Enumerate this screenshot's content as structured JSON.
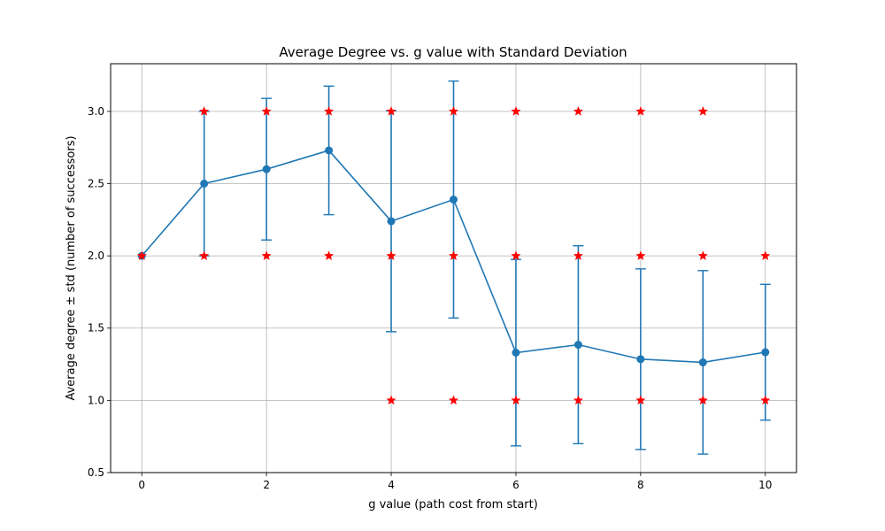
{
  "chart_data": {
    "type": "line",
    "title": "Average Degree vs. g value with Standard Deviation",
    "xlabel": "g value (path cost from start)",
    "ylabel": "Average degree ± std (number of successors)",
    "xlim": [
      -0.5,
      10.5
    ],
    "ylim": [
      0.5,
      3.33
    ],
    "xticks": [
      0,
      2,
      4,
      6,
      8,
      10
    ],
    "yticks": [
      0.5,
      1.0,
      1.5,
      2.0,
      2.5,
      3.0
    ],
    "grid": true,
    "series": [
      {
        "kind": "line-errorbar",
        "color": "#1f77b4",
        "x": [
          0,
          1,
          2,
          3,
          4,
          5,
          6,
          7,
          8,
          9,
          10
        ],
        "y": [
          2.0,
          2.5,
          2.6,
          2.73,
          2.24,
          2.39,
          1.33,
          1.385,
          1.285,
          1.263,
          1.333
        ],
        "std": [
          0.0,
          0.5,
          0.49,
          0.445,
          0.765,
          0.82,
          0.645,
          0.685,
          0.625,
          0.635,
          0.47
        ]
      },
      {
        "kind": "scatter-star",
        "color": "#ff0000",
        "points": [
          [
            0,
            2.0
          ],
          [
            1,
            3.0
          ],
          [
            1,
            2.0
          ],
          [
            2,
            3.0
          ],
          [
            2,
            2.0
          ],
          [
            3,
            3.0
          ],
          [
            3,
            2.0
          ],
          [
            4,
            3.0
          ],
          [
            4,
            2.0
          ],
          [
            4,
            1.0
          ],
          [
            5,
            3.0
          ],
          [
            5,
            2.0
          ],
          [
            5,
            1.0
          ],
          [
            6,
            3.0
          ],
          [
            6,
            2.0
          ],
          [
            6,
            1.0
          ],
          [
            7,
            3.0
          ],
          [
            7,
            2.0
          ],
          [
            7,
            1.0
          ],
          [
            8,
            3.0
          ],
          [
            8,
            2.0
          ],
          [
            8,
            1.0
          ],
          [
            9,
            3.0
          ],
          [
            9,
            2.0
          ],
          [
            9,
            1.0
          ],
          [
            10,
            2.0
          ],
          [
            10,
            1.0
          ]
        ]
      }
    ]
  }
}
